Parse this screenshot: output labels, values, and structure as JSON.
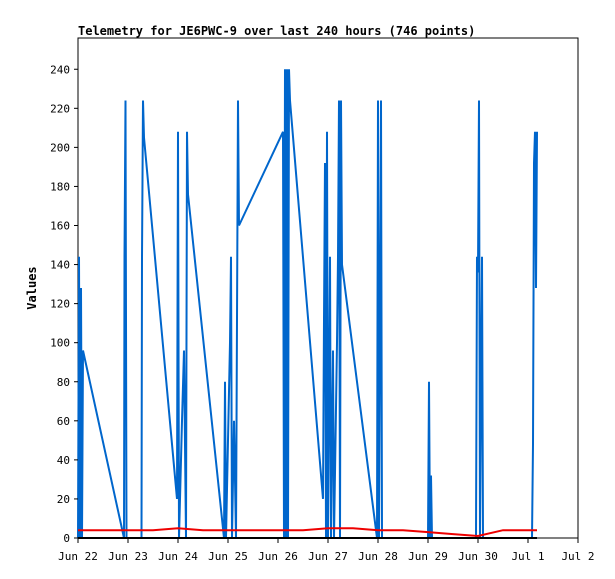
{
  "chart_data": {
    "type": "line",
    "title": "Telemetry for JE6PWC-9 over last 240 hours (746 points)",
    "xlabel": "",
    "ylabel": "Values",
    "x_ticks": [
      "Jun 22",
      "Jun 23",
      "Jun 24",
      "Jun 25",
      "Jun 26",
      "Jun 27",
      "Jun 28",
      "Jun 29",
      "Jun 30",
      "Jul 1",
      "Jul 2"
    ],
    "xlim": [
      0,
      10
    ],
    "ylim": [
      0,
      256
    ],
    "y_ticks": [
      0,
      20,
      40,
      60,
      80,
      100,
      120,
      140,
      160,
      180,
      200,
      220,
      240
    ],
    "grid": false,
    "colors": {
      "series_blue": "#0066cc",
      "series_red": "#ee0000",
      "series_black": "#000000"
    },
    "series": [
      {
        "color": "#0066cc",
        "points": [
          [
            0.0,
            0
          ],
          [
            0.02,
            144
          ],
          [
            0.04,
            0
          ],
          [
            0.06,
            128
          ],
          [
            0.08,
            0
          ],
          [
            0.1,
            96
          ],
          [
            0.92,
            0
          ],
          [
            0.93,
            144
          ],
          [
            0.95,
            224
          ],
          [
            0.97,
            0
          ],
          [
            1.27,
            0
          ],
          [
            1.28,
            144
          ],
          [
            1.3,
            224
          ],
          [
            1.32,
            205
          ],
          [
            1.98,
            20
          ],
          [
            2.0,
            208
          ],
          [
            2.02,
            0
          ],
          [
            2.08,
            60
          ],
          [
            2.12,
            96
          ],
          [
            2.16,
            0
          ],
          [
            2.18,
            208
          ],
          [
            2.2,
            176
          ],
          [
            2.92,
            0
          ],
          [
            2.94,
            80
          ],
          [
            2.96,
            0
          ],
          [
            3.04,
            100
          ],
          [
            3.06,
            144
          ],
          [
            3.08,
            0
          ],
          [
            3.12,
            60
          ],
          [
            3.16,
            0
          ],
          [
            3.2,
            224
          ],
          [
            3.22,
            160
          ],
          [
            4.1,
            208
          ],
          [
            4.12,
            0
          ],
          [
            4.14,
            240
          ],
          [
            4.16,
            0
          ],
          [
            4.18,
            240
          ],
          [
            4.2,
            0
          ],
          [
            4.22,
            240
          ],
          [
            4.24,
            224
          ],
          [
            4.9,
            20
          ],
          [
            4.92,
            112
          ],
          [
            4.94,
            192
          ],
          [
            4.96,
            0
          ],
          [
            4.98,
            208
          ],
          [
            5.0,
            0
          ],
          [
            5.04,
            144
          ],
          [
            5.06,
            0
          ],
          [
            5.1,
            96
          ],
          [
            5.12,
            0
          ],
          [
            5.18,
            100
          ],
          [
            5.2,
            144
          ],
          [
            5.22,
            224
          ],
          [
            5.24,
            0
          ],
          [
            5.26,
            224
          ],
          [
            5.28,
            140
          ],
          [
            5.98,
            0
          ],
          [
            6.0,
            224
          ],
          [
            6.02,
            0
          ],
          [
            6.06,
            224
          ],
          [
            6.08,
            0
          ],
          [
            7.0,
            0
          ],
          [
            7.02,
            80
          ],
          [
            7.04,
            0
          ],
          [
            7.06,
            32
          ],
          [
            7.08,
            0
          ],
          [
            7.96,
            0
          ],
          [
            7.98,
            144
          ],
          [
            8.0,
            136
          ],
          [
            8.02,
            224
          ],
          [
            8.04,
            0
          ],
          [
            8.06,
            80
          ],
          [
            8.08,
            144
          ],
          [
            8.1,
            0
          ],
          [
            9.08,
            0
          ],
          [
            9.1,
            48
          ],
          [
            9.12,
            192
          ],
          [
            9.14,
            208
          ],
          [
            9.16,
            128
          ],
          [
            9.18,
            208
          ]
        ]
      },
      {
        "color": "#ee0000",
        "points": [
          [
            0.0,
            4
          ],
          [
            1.0,
            4
          ],
          [
            1.5,
            4
          ],
          [
            2.0,
            5
          ],
          [
            2.5,
            4
          ],
          [
            3.0,
            4
          ],
          [
            3.5,
            4
          ],
          [
            4.0,
            4
          ],
          [
            4.5,
            4
          ],
          [
            5.0,
            5
          ],
          [
            5.5,
            5
          ],
          [
            6.0,
            4
          ],
          [
            6.5,
            4
          ],
          [
            7.0,
            3
          ],
          [
            7.5,
            2
          ],
          [
            8.0,
            1
          ],
          [
            8.5,
            4
          ],
          [
            9.0,
            4
          ],
          [
            9.18,
            4
          ]
        ]
      },
      {
        "color": "#000000",
        "points": [
          [
            0.0,
            0
          ],
          [
            9.18,
            0
          ]
        ]
      }
    ]
  }
}
